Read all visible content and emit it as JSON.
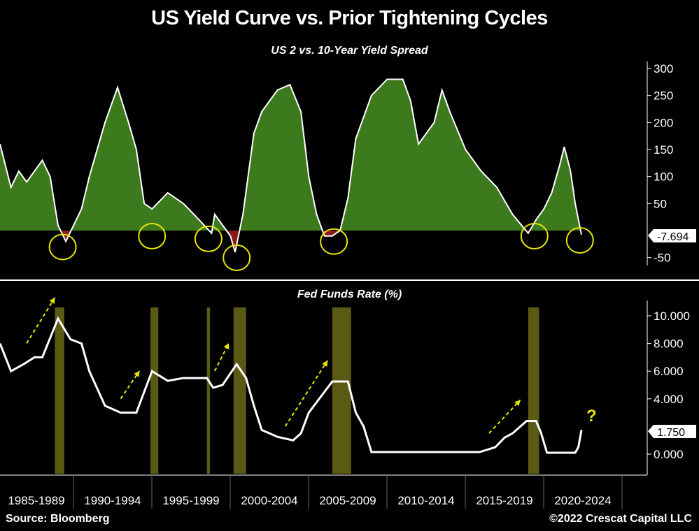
{
  "title": "US Yield Curve vs. Prior Tightening Cycles",
  "source": "Source: Bloomberg",
  "copyright": "©2022 Crescat Capital LLC",
  "colors": {
    "fill_positive": "#3d7a1e",
    "fill_negative": "#8b1a1a",
    "line": "#ffffff",
    "highlight": "#e6e600",
    "shade": "#5a5a14"
  },
  "chart_data": [
    {
      "type": "area",
      "title": "US 2 vs. 10-Year Yield Spread",
      "ylim": [
        -60,
        310
      ],
      "yticks": [
        300,
        250,
        200,
        150,
        100,
        50,
        -50
      ],
      "last_value_label": "-7.694",
      "x": [
        1985.3,
        1986,
        1986.5,
        1987,
        1988,
        1988.5,
        1989,
        1989.5,
        1990,
        1990.5,
        1991,
        1992,
        1992.8,
        1993.5,
        1994,
        1994.5,
        1995,
        1996,
        1997,
        1998,
        1998.8,
        1999,
        2000,
        2000.3,
        2000.8,
        2001.5,
        2002,
        2003,
        2003.8,
        2004.5,
        2005,
        2005.5,
        2006,
        2006.5,
        2007,
        2007.5,
        2008,
        2009,
        2010,
        2011,
        2011.5,
        2012,
        2013,
        2013.5,
        2014,
        2015,
        2016,
        2017,
        2018,
        2019,
        2019.5,
        2020,
        2020.5,
        2021,
        2021.3,
        2021.7,
        2022,
        2022.4
      ],
      "y": [
        160,
        80,
        110,
        90,
        130,
        100,
        10,
        -20,
        10,
        40,
        100,
        200,
        265,
        200,
        150,
        50,
        40,
        70,
        50,
        20,
        -5,
        30,
        -10,
        -40,
        30,
        180,
        220,
        260,
        270,
        220,
        100,
        30,
        -10,
        -10,
        0,
        60,
        170,
        250,
        280,
        280,
        240,
        160,
        200,
        260,
        220,
        150,
        110,
        80,
        30,
        -5,
        20,
        40,
        70,
        120,
        155,
        110,
        50,
        -7.694
      ],
      "highlighted_inversions": [
        1989.3,
        1995.0,
        1998.6,
        2000.4,
        2006.6,
        2019.4,
        2022.3
      ]
    },
    {
      "type": "line",
      "title": "Fed Funds Rate (%)",
      "ylim": [
        -1,
        11
      ],
      "yticks": [
        "10.000",
        "8.000",
        "6.000",
        "4.000",
        "0.000"
      ],
      "last_value_label": "1.750",
      "annotation": "?",
      "x": [
        1985.3,
        1986,
        1986.8,
        1987.5,
        1988,
        1989,
        1989.8,
        1990.5,
        1991,
        1992,
        1993,
        1994,
        1994.5,
        1995,
        1996,
        1997,
        1998.5,
        1998.9,
        1999.5,
        2000.4,
        2001,
        2001.5,
        2002,
        2003,
        2004,
        2004.5,
        2005,
        2006,
        2006.5,
        2007.5,
        2008,
        2008.5,
        2009,
        2015.9,
        2016.9,
        2017.5,
        2018,
        2018.9,
        2019.5,
        2019.8,
        2020.2,
        2022,
        2022.2,
        2022.4
      ],
      "y": [
        8,
        6,
        6.5,
        7,
        7,
        9.8,
        8.3,
        8,
        6,
        3.5,
        3,
        3,
        4.5,
        6,
        5.3,
        5.5,
        5.5,
        4.8,
        5,
        6.5,
        5.5,
        3.5,
        1.75,
        1.25,
        1,
        1.5,
        3,
        4.5,
        5.25,
        5.25,
        3,
        2,
        0.15,
        0.15,
        0.5,
        1.2,
        1.5,
        2.4,
        2.4,
        1.6,
        0.1,
        0.1,
        0.5,
        1.75
      ],
      "shaded_periods": [
        [
          1988.8,
          1989.4
        ],
        [
          1994.9,
          1995.4
        ],
        [
          1998.5,
          1998.7
        ],
        [
          2000.2,
          2001.0
        ],
        [
          2006.5,
          2007.7
        ],
        [
          2019.0,
          2019.7
        ]
      ],
      "arrows": [
        [
          1987,
          1988.8
        ],
        [
          1993,
          1994.2
        ],
        [
          1999,
          1999.9
        ],
        [
          2003.5,
          2006.2
        ],
        [
          2016.5,
          2018.5
        ]
      ]
    }
  ],
  "x_categories": [
    "1985-1989",
    "1990-1994",
    "1995-1999",
    "2000-2004",
    "2005-2009",
    "2010-2014",
    "2015-2019",
    "2020-2024"
  ]
}
